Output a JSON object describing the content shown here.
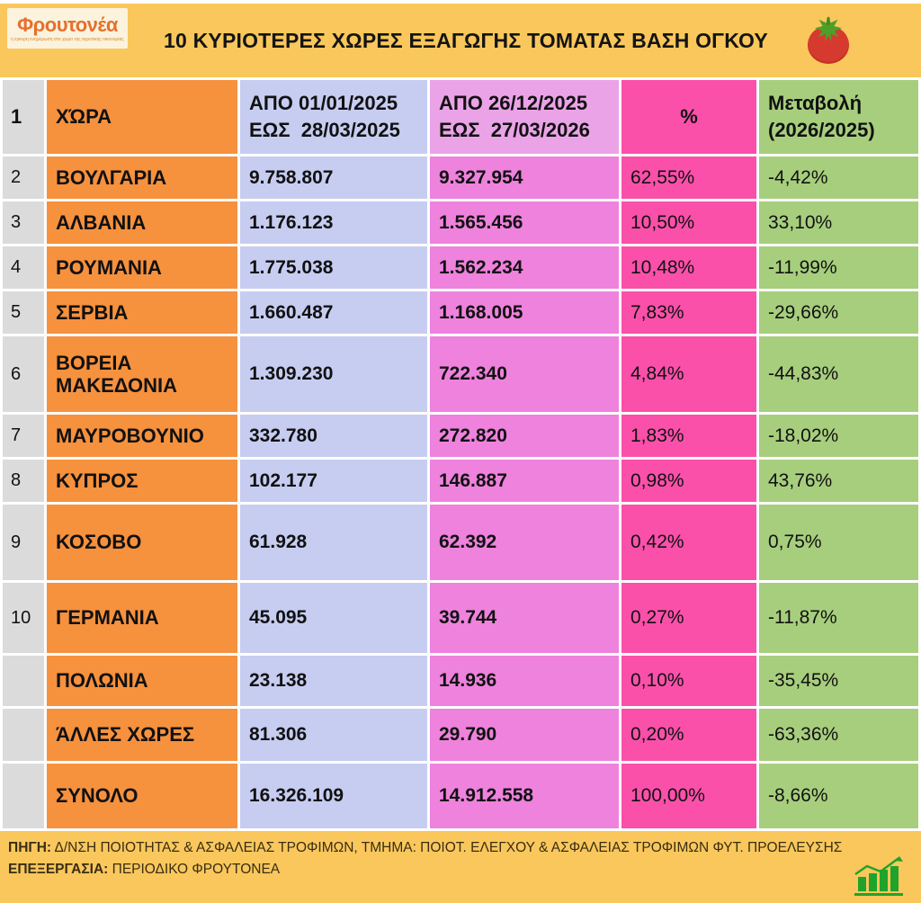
{
  "header": {
    "logo_name": "Φρουτονέα",
    "logo_tagline": "η έγκυρη ενημέρωση στο χώρο της αγροτικής οικονομίας",
    "title": "10 ΚΥΡΙΟΤΕΡΕΣ ΧΩΡΕΣ ΕΞΑΓΩΓΗΣ ΤΟΜΑΤΑΣ ΒΑΣΗ ΟΓΚΟΥ",
    "tomato_icon": "tomato-icon"
  },
  "table": {
    "header_row": {
      "num": "1",
      "country": "ΧΏΡΑ",
      "period1": "ΑΠΟ 01/01/2025\nΕΩΣ  28/03/2025",
      "period2": "ΑΠΟ 26/12/2025\nΕΩΣ  27/03/2026",
      "pct": "%",
      "change": "Μεταβολή\n(2026/2025)"
    },
    "rows": [
      {
        "num": "2",
        "country": "ΒΟΥΛΓΑΡΙΑ",
        "period1": "9.758.807",
        "period2": "9.327.954",
        "pct": "62,55%",
        "change": "-4,42%"
      },
      {
        "num": "3",
        "country": "ΑΛΒΑΝΙΑ",
        "period1": "1.176.123",
        "period2": "1.565.456",
        "pct": "10,50%",
        "change": "33,10%"
      },
      {
        "num": "4",
        "country": "ΡΟΥΜΑΝΙΑ",
        "period1": "1.775.038",
        "period2": "1.562.234",
        "pct": "10,48%",
        "change": "-11,99%"
      },
      {
        "num": "5",
        "country": "ΣΕΡΒΙΑ",
        "period1": "1.660.487",
        "period2": "1.168.005",
        "pct": "7,83%",
        "change": "-29,66%"
      },
      {
        "num": "6",
        "country": "ΒΟΡΕΙΑ ΜΑΚΕΔΟΝΙΑ",
        "period1": "1.309.230",
        "period2": "722.340",
        "pct": "4,84%",
        "change": "-44,83%"
      },
      {
        "num": "7",
        "country": "ΜΑΥΡΟΒΟΥΝΙΟ",
        "period1": "332.780",
        "period2": "272.820",
        "pct": "1,83%",
        "change": "-18,02%"
      },
      {
        "num": "8",
        "country": "ΚΥΠΡΟΣ",
        "period1": "102.177",
        "period2": "146.887",
        "pct": "0,98%",
        "change": "43,76%"
      },
      {
        "num": "9",
        "country": "ΚΟΣΟΒΟ",
        "period1": "61.928",
        "period2": "62.392",
        "pct": "0,42%",
        "change": "0,75%"
      },
      {
        "num": "10",
        "country": "ΓΕΡΜΑΝΙΑ",
        "period1": "45.095",
        "period2": "39.744",
        "pct": "0,27%",
        "change": "-11,87%"
      },
      {
        "num": "",
        "country": "ΠΟΛΩΝΙΑ",
        "period1": "23.138",
        "period2": "14.936",
        "pct": "0,10%",
        "change": "-35,45%"
      },
      {
        "num": "",
        "country": "ΆΛΛΕΣ ΧΩΡΕΣ",
        "period1": "81.306",
        "period2": "29.790",
        "pct": "0,20%",
        "change": "-63,36%"
      },
      {
        "num": "",
        "country": "ΣΥΝΟΛΟ",
        "period1": "16.326.109",
        "period2": "14.912.558",
        "pct": "100,00%",
        "change": "-8,66%"
      }
    ]
  },
  "footer": {
    "source_label": "ΠΗΓΗ:",
    "source_text": "Δ/ΝΣΗ ΠΟΙΟΤΗΤΑΣ & ΑΣΦΑΛΕΙΑΣ ΤΡΟΦΙΜΩΝ, ΤΜΗΜΑ: ΠΟΙΟΤ. ΕΛΕΓΧΟΥ & ΑΣΦΑΛΕΙΑΣ ΤΡΟΦΙΜΩΝ ΦΥΤ. ΠΡΟΕΛΕΥΣΗΣ",
    "processing_label": "ΕΠΕΞΕΡΓΑΣΙΑ:",
    "processing_text": "ΠΕΡΙΟΔΙΚΟ ΦΡΟΥΤΟΝΕΑ",
    "growth_icon": "growth-chart-icon"
  },
  "colors": {
    "band_yellow": "#F9C75C",
    "num_gray": "#DBDBDB",
    "country_orange": "#F6913E",
    "period1_blue": "#C7CDF1",
    "period2_pink": "#EE82DD",
    "period2_header_pink": "#EBA3E8",
    "pct_magenta": "#FA50AA",
    "change_green": "#A7CE7D",
    "grid_white": "#FFFFFF",
    "tomato_red": "#D63A2F",
    "stem_green": "#4E9E28",
    "logo_orange": "#E5702D"
  },
  "chart_data": {
    "type": "table",
    "title": "10 ΚΥΡΙΟΤΕΡΕΣ ΧΩΡΕΣ ΕΞΑΓΩΓΗΣ ΤΟΜΑΤΑΣ ΒΑΣΗ ΟΓΚΟΥ",
    "columns": [
      "ΧΏΡΑ",
      "ΑΠΟ 01/01/2025 ΕΩΣ 28/03/2025",
      "ΑΠΟ 26/12/2025 ΕΩΣ 27/03/2026",
      "%",
      "Μεταβολή (2026/2025)"
    ],
    "rows": [
      [
        "ΒΟΥΛΓΑΡΙΑ",
        9758807,
        9327954,
        "62,55%",
        "-4,42%"
      ],
      [
        "ΑΛΒΑΝΙΑ",
        1176123,
        1565456,
        "10,50%",
        "33,10%"
      ],
      [
        "ΡΟΥΜΑΝΙΑ",
        1775038,
        1562234,
        "10,48%",
        "-11,99%"
      ],
      [
        "ΣΕΡΒΙΑ",
        1660487,
        1168005,
        "7,83%",
        "-29,66%"
      ],
      [
        "ΒΟΡΕΙΑ ΜΑΚΕΔΟΝΙΑ",
        1309230,
        722340,
        "4,84%",
        "-44,83%"
      ],
      [
        "ΜΑΥΡΟΒΟΥΝΙΟ",
        332780,
        272820,
        "1,83%",
        "-18,02%"
      ],
      [
        "ΚΥΠΡΟΣ",
        102177,
        146887,
        "0,98%",
        "43,76%"
      ],
      [
        "ΚΟΣΟΒΟ",
        61928,
        62392,
        "0,42%",
        "0,75%"
      ],
      [
        "ΓΕΡΜΑΝΙΑ",
        45095,
        39744,
        "0,27%",
        "-11,87%"
      ],
      [
        "ΠΟΛΩΝΙΑ",
        23138,
        14936,
        "0,10%",
        "-35,45%"
      ],
      [
        "ΆΛΛΕΣ ΧΩΡΕΣ",
        81306,
        29790,
        "0,20%",
        "-63,36%"
      ],
      [
        "ΣΥΝΟΛΟ",
        16326109,
        14912558,
        "100,00%",
        "-8,66%"
      ]
    ]
  }
}
